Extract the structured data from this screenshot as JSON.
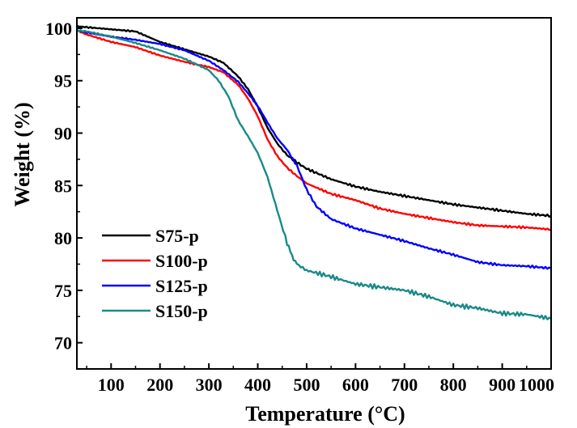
{
  "chart_data": {
    "type": "line",
    "title": "",
    "xlabel": "Temperature (°C)",
    "ylabel": "Weight (%)",
    "xlim": [
      30,
      1000
    ],
    "ylim": [
      67.5,
      101
    ],
    "xticks": [
      100,
      200,
      300,
      400,
      500,
      600,
      700,
      800,
      900,
      1000
    ],
    "yticks": [
      70,
      75,
      80,
      85,
      90,
      95,
      100
    ],
    "xtick_labels": [
      "100",
      "200",
      "300",
      "400",
      "500",
      "600",
      "700",
      "800",
      "900",
      "1000"
    ],
    "ytick_labels": [
      "70",
      "75",
      "80",
      "85",
      "90",
      "95",
      "100"
    ],
    "grid": false,
    "legend_position": "bottom-left",
    "series": [
      {
        "name": "S75-p",
        "color": "#000000",
        "x": [
          30,
          50,
          100,
          150,
          200,
          250,
          300,
          330,
          360,
          380,
          400,
          420,
          440,
          460,
          480,
          500,
          550,
          600,
          650,
          700,
          750,
          800,
          850,
          900,
          950,
          1000
        ],
        "y": [
          100.2,
          100.1,
          99.9,
          99.7,
          98.7,
          98.0,
          97.3,
          96.7,
          95.4,
          94.2,
          92.5,
          90.5,
          89.0,
          87.9,
          87.2,
          86.6,
          85.6,
          84.9,
          84.4,
          84.0,
          83.6,
          83.2,
          82.9,
          82.6,
          82.3,
          82.1
        ]
      },
      {
        "name": "S100-p",
        "color": "#ff0000",
        "x": [
          30,
          50,
          100,
          150,
          200,
          250,
          300,
          330,
          360,
          380,
          400,
          420,
          440,
          460,
          480,
          500,
          550,
          600,
          650,
          700,
          750,
          800,
          850,
          900,
          950,
          1000
        ],
        "y": [
          99.8,
          99.4,
          98.7,
          98.2,
          97.4,
          96.8,
          96.3,
          95.8,
          94.6,
          93.3,
          91.6,
          89.4,
          87.8,
          86.7,
          85.9,
          85.2,
          84.2,
          83.6,
          82.8,
          82.3,
          81.9,
          81.5,
          81.2,
          81.1,
          81.0,
          80.8
        ]
      },
      {
        "name": "S125-p",
        "color": "#0000ff",
        "x": [
          30,
          50,
          100,
          150,
          200,
          250,
          300,
          330,
          360,
          380,
          400,
          420,
          440,
          460,
          480,
          500,
          520,
          550,
          600,
          650,
          700,
          750,
          800,
          850,
          900,
          950,
          1000
        ],
        "y": [
          99.8,
          99.6,
          99.2,
          98.9,
          98.5,
          97.9,
          96.9,
          96.0,
          94.9,
          93.8,
          92.6,
          91.0,
          89.5,
          88.4,
          86.9,
          84.6,
          83.0,
          81.8,
          80.9,
          80.3,
          79.7,
          79.0,
          78.4,
          77.7,
          77.4,
          77.3,
          77.1
        ]
      },
      {
        "name": "S150-p",
        "color": "#1a8a87",
        "x": [
          30,
          50,
          100,
          150,
          200,
          250,
          300,
          320,
          340,
          360,
          380,
          400,
          420,
          440,
          460,
          470,
          480,
          500,
          550,
          600,
          650,
          700,
          750,
          800,
          850,
          900,
          950,
          1000
        ],
        "y": [
          99.8,
          99.7,
          99.2,
          98.6,
          97.9,
          97.1,
          96.0,
          95.0,
          93.5,
          91.2,
          89.7,
          88.1,
          85.8,
          82.6,
          79.5,
          78.3,
          77.5,
          76.9,
          76.3,
          75.6,
          75.3,
          75.0,
          74.4,
          73.6,
          73.3,
          72.8,
          72.7,
          72.3
        ]
      }
    ]
  }
}
